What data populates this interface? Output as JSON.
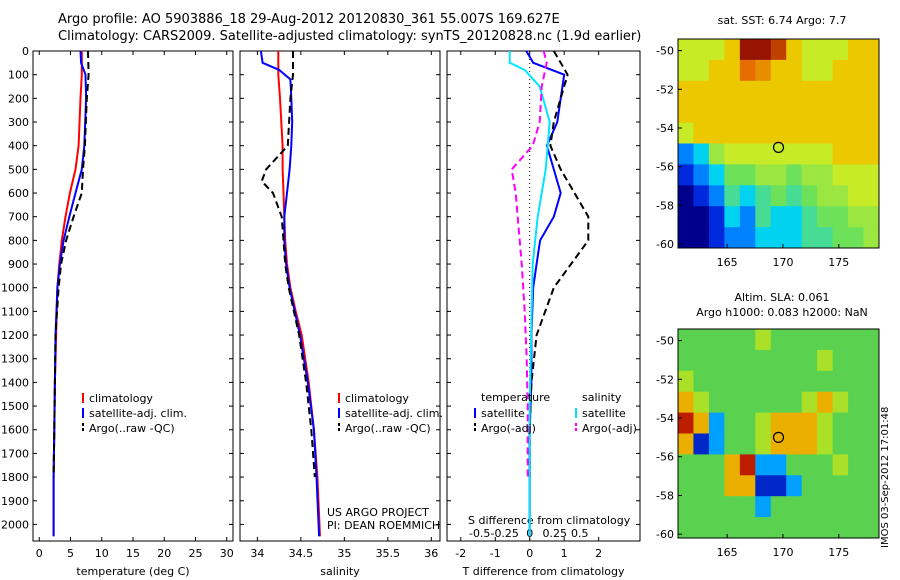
{
  "title": {
    "line1": "Argo profile: AO 5903886_18 29-Aug-2012 20120830_361 55.007S 169.627E",
    "line2": "Climatology: CARS2009. Satellite-adjusted climatology: synTS_20120828.nc (1.9d earlier)"
  },
  "colors": {
    "red": "#ff0000",
    "blue": "#0000ff",
    "black": "#000000",
    "cyan": "#00e5ff",
    "magenta": "#ff00ff"
  },
  "depth_ticks": [
    0,
    100,
    200,
    300,
    400,
    500,
    600,
    700,
    800,
    900,
    1000,
    1100,
    1200,
    1300,
    1400,
    1500,
    1600,
    1700,
    1800,
    1900,
    2000
  ],
  "chart_data": [
    {
      "type": "line",
      "id": "temperature",
      "xlabel": "temperature (deg C)",
      "ylim": [
        0,
        2070
      ],
      "xlim": [
        -1,
        31
      ],
      "xticks": [
        0,
        5,
        10,
        15,
        20,
        25,
        30
      ],
      "legend": [
        "climatology",
        "satellite-adj. clim.",
        "Argo(..raw -QC)"
      ],
      "series": [
        {
          "name": "climatology",
          "color": "red",
          "dash": false,
          "depth": [
            0,
            100,
            200,
            400,
            500,
            600,
            700,
            800,
            900,
            1000,
            1200,
            1400,
            1600,
            1800,
            2050
          ],
          "values": [
            6.8,
            6.8,
            6.6,
            6.3,
            5.8,
            4.9,
            4.2,
            3.6,
            3.2,
            2.9,
            2.7,
            2.5,
            2.4,
            2.3,
            2.3
          ]
        },
        {
          "name": "satellite-adj. clim.",
          "color": "blue",
          "dash": false,
          "depth": [
            0,
            50,
            100,
            200,
            400,
            500,
            600,
            700,
            800,
            900,
            1000,
            1200,
            1400,
            1600,
            1800,
            2050
          ],
          "values": [
            6.6,
            6.7,
            7.4,
            7.5,
            7.2,
            6.8,
            5.8,
            4.8,
            3.9,
            3.3,
            2.9,
            2.6,
            2.5,
            2.4,
            2.3,
            2.3
          ]
        },
        {
          "name": "Argo(..raw -QC)",
          "color": "black",
          "dash": true,
          "depth": [
            0,
            100,
            200,
            400,
            500,
            600,
            700,
            800,
            900,
            1000,
            1200,
            1400,
            1600,
            1800
          ],
          "values": [
            7.8,
            7.9,
            7.6,
            7.3,
            7.0,
            6.8,
            5.5,
            4.3,
            3.5,
            3.1,
            2.6,
            2.5,
            2.4,
            2.3
          ]
        }
      ]
    },
    {
      "type": "line",
      "id": "salinity",
      "xlabel": "salinity",
      "ylim": [
        0,
        2070
      ],
      "xlim": [
        33.8,
        36.1
      ],
      "xticks": [
        34,
        34.5,
        35,
        35.5,
        36
      ],
      "legend": [
        "climatology",
        "satellite-adj. clim.",
        "Argo(..raw -QC)"
      ],
      "annotation": [
        "US ARGO PROJECT",
        "PI: DEAN ROEMMICH"
      ],
      "series": [
        {
          "name": "climatology",
          "color": "red",
          "dash": false,
          "depth": [
            0,
            100,
            200,
            400,
            500,
            600,
            700,
            800,
            900,
            1000,
            1100,
            1200,
            1400,
            1600,
            1800,
            2050
          ],
          "values": [
            34.24,
            34.24,
            34.26,
            34.29,
            34.29,
            34.3,
            34.31,
            34.32,
            34.34,
            34.38,
            34.44,
            34.51,
            34.59,
            34.65,
            34.69,
            34.72
          ]
        },
        {
          "name": "satellite-adj. clim.",
          "color": "blue",
          "dash": false,
          "depth": [
            0,
            50,
            80,
            120,
            200,
            300,
            400,
            500,
            600,
            700,
            800,
            900,
            1000,
            1100,
            1200,
            1400,
            1600,
            1800,
            2050
          ],
          "values": [
            34.04,
            34.06,
            34.25,
            34.38,
            34.39,
            34.4,
            34.39,
            34.37,
            34.34,
            34.31,
            34.31,
            34.33,
            34.37,
            34.43,
            34.49,
            34.58,
            34.65,
            34.68,
            34.71
          ]
        },
        {
          "name": "Argo(..raw -QC)",
          "color": "black",
          "dash": true,
          "depth": [
            0,
            100,
            200,
            400,
            500,
            550,
            600,
            700,
            800,
            900,
            1000,
            1200,
            1400,
            1600,
            1800
          ],
          "values": [
            34.41,
            34.41,
            34.38,
            34.35,
            34.1,
            34.05,
            34.18,
            34.28,
            34.3,
            34.32,
            34.36,
            34.48,
            34.56,
            34.62,
            34.66
          ]
        }
      ]
    },
    {
      "type": "line",
      "id": "differences",
      "xlabel": "T difference from climatology",
      "xlabel_top": "S difference from climatology",
      "ylim": [
        0,
        2070
      ],
      "xlim": [
        -2.4,
        3.2
      ],
      "xticks": [
        -2,
        -1,
        0,
        1,
        2
      ],
      "xticks_top": [
        -0.5,
        -0.25,
        0,
        0.25,
        0.5
      ],
      "legend_temperature_title": "temperature",
      "legend_salinity_title": "salinity",
      "legend": [
        "satellite",
        "Argo(-adj)",
        "satellite",
        "Argo(-adj)"
      ],
      "series": [
        {
          "name": "satellite",
          "group": "temperature",
          "color": "blue",
          "dash": false,
          "depth": [
            0,
            50,
            100,
            200,
            300,
            400,
            500,
            600,
            700,
            800,
            900,
            1000,
            1200,
            1400,
            1600,
            1800,
            2050
          ],
          "values": [
            -0.1,
            0.1,
            1.0,
            0.9,
            0.8,
            0.5,
            0.7,
            0.9,
            0.7,
            0.3,
            0.2,
            0.1,
            0.05,
            0.05,
            0.0,
            0.0,
            0.0
          ]
        },
        {
          "name": "Argo(-adj)",
          "group": "temperature",
          "color": "black",
          "dash": true,
          "depth": [
            0,
            50,
            100,
            200,
            300,
            400,
            500,
            600,
            700,
            800,
            900,
            1000,
            1200,
            1400,
            1600,
            1800
          ],
          "values": [
            0.7,
            0.9,
            1.1,
            0.9,
            0.7,
            0.6,
            0.9,
            1.3,
            1.7,
            1.7,
            1.2,
            0.7,
            0.2,
            0.05,
            0.0,
            0.0
          ]
        },
        {
          "name": "satellite",
          "group": "salinity",
          "color": "cyan",
          "dash": false,
          "depth": [
            0,
            50,
            80,
            150,
            300,
            500,
            700,
            900,
            1100,
            1300,
            1500,
            1700,
            1900,
            2050
          ],
          "values": [
            -0.2,
            -0.2,
            -0.05,
            0.1,
            0.2,
            0.16,
            0.08,
            0.03,
            0.02,
            0.01,
            0.0,
            0.0,
            0.0,
            0.0
          ]
        },
        {
          "name": "Argo(-adj)",
          "group": "salinity",
          "color": "magenta",
          "dash": true,
          "depth": [
            0,
            50,
            150,
            300,
            400,
            500,
            600,
            700,
            900,
            1100,
            1300,
            1500,
            1700,
            1800
          ],
          "values": [
            0.14,
            0.17,
            0.12,
            0.1,
            0.03,
            -0.18,
            -0.14,
            -0.12,
            -0.08,
            -0.05,
            -0.03,
            -0.02,
            -0.02,
            -0.02
          ]
        }
      ]
    },
    {
      "type": "heatmap",
      "id": "sst_map",
      "title": "sat. SST: 6.74  Argo: 7.7",
      "xticks": [
        165,
        170,
        175
      ],
      "yticks": [
        -50,
        -52,
        -54,
        -56,
        -58,
        -60
      ],
      "xlim": [
        160.6,
        178.6
      ],
      "ylim": [
        -60.2,
        -49.4
      ],
      "profile_marker": [
        169.6,
        -55.0
      ],
      "grid_values": [
        [
          3,
          3,
          3,
          4,
          9,
          9,
          8,
          4,
          3,
          3,
          3,
          4,
          4
        ],
        [
          3,
          3,
          4,
          4,
          7,
          6,
          4,
          4,
          3,
          3,
          4,
          4,
          4
        ],
        [
          4,
          4,
          4,
          4,
          4,
          4,
          4,
          4,
          4,
          4,
          4,
          4,
          4
        ],
        [
          4,
          4,
          4,
          4,
          4,
          4,
          4,
          4,
          4,
          4,
          4,
          4,
          4
        ],
        [
          3,
          4,
          4,
          4,
          4,
          4,
          4,
          4,
          4,
          4,
          4,
          4,
          4
        ],
        [
          -2,
          -1,
          2,
          3,
          3,
          3,
          3,
          3,
          3,
          3,
          4,
          4,
          4
        ],
        [
          -3,
          -2,
          -1,
          1,
          1,
          2,
          2,
          1,
          2,
          2,
          3,
          3,
          3
        ],
        [
          -4,
          -3,
          -2,
          0,
          -1,
          0,
          1,
          0,
          1,
          2,
          2,
          3,
          3
        ],
        [
          -4,
          -4,
          -3,
          -1,
          -2,
          0,
          -1,
          -1,
          0,
          1,
          1,
          2,
          2
        ],
        [
          -4,
          -4,
          -3,
          -2,
          -2,
          -1,
          -1,
          -1,
          0,
          0,
          1,
          1,
          2
        ]
      ]
    },
    {
      "type": "heatmap",
      "id": "sla_map",
      "title": "Altim. SLA: 0.061",
      "subtitle": "Argo h1000: 0.083  h2000: NaN",
      "xticks": [
        165,
        170,
        175
      ],
      "yticks": [
        -50,
        -52,
        -54,
        -56,
        -58,
        -60
      ],
      "xlim": [
        160.6,
        178.6
      ],
      "ylim": [
        -60.2,
        -49.4
      ],
      "profile_marker": [
        169.6,
        -55.0
      ],
      "grid_values": [
        [
          0,
          0,
          0,
          0,
          0,
          1,
          0,
          0,
          0,
          0,
          0,
          0,
          0
        ],
        [
          0,
          0,
          0,
          0,
          0,
          0,
          0,
          0,
          0,
          1,
          0,
          0,
          0
        ],
        [
          1,
          0,
          0,
          0,
          0,
          0,
          0,
          0,
          0,
          0,
          0,
          0,
          0
        ],
        [
          2,
          1,
          0,
          0,
          0,
          0,
          0,
          0,
          1,
          2,
          1,
          0,
          0
        ],
        [
          9,
          2,
          -2,
          0,
          0,
          1,
          2,
          3,
          2,
          1,
          0,
          0,
          0
        ],
        [
          3,
          -3,
          -2,
          0,
          0,
          1,
          3,
          2,
          2,
          1,
          0,
          0,
          0
        ],
        [
          0,
          0,
          0,
          2,
          7,
          -1,
          -2,
          0,
          0,
          0,
          1,
          0,
          0
        ],
        [
          0,
          0,
          0,
          3,
          2,
          -4,
          -3,
          -1,
          0,
          0,
          0,
          0,
          0
        ],
        [
          0,
          0,
          0,
          0,
          0,
          -1,
          0,
          0,
          0,
          0,
          0,
          0,
          0
        ],
        [
          0,
          0,
          0,
          0,
          0,
          0,
          0,
          0,
          0,
          0,
          0,
          0,
          0
        ]
      ]
    }
  ],
  "timestamp": "IMOS 03-Sep-2012 17:01:48"
}
